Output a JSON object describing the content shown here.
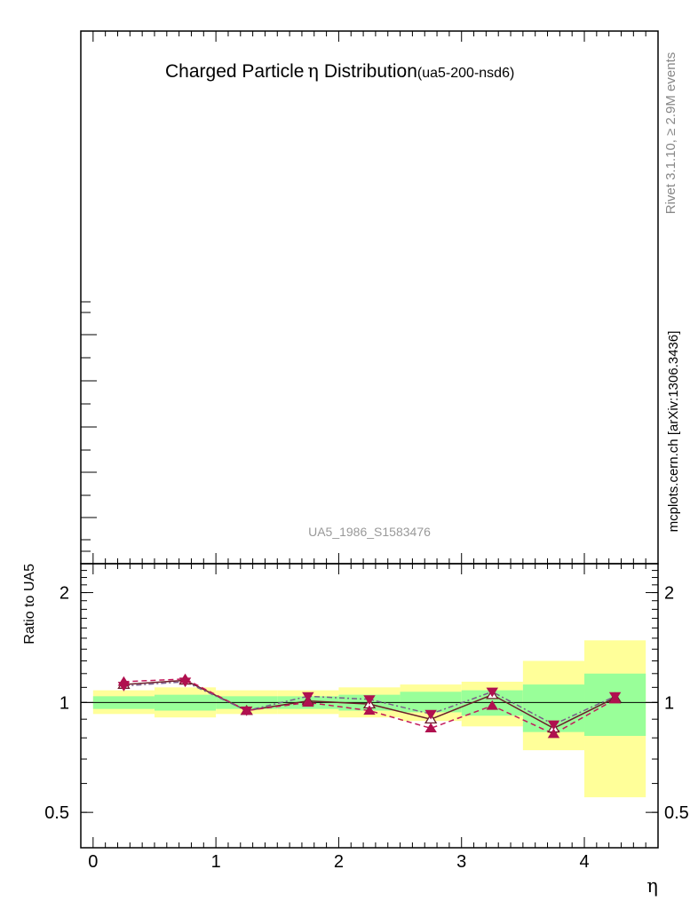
{
  "title": {
    "main": "Charged Particle",
    "symbol": "η",
    "tail": " Distribution",
    "tag": "(ua5-200-nsd6)"
  },
  "side_labels": {
    "rivet": "Rivet 3.1.10, ≥ 2.9M events",
    "mcplots": "mcplots.cern.ch [arXiv:1306.3436]"
  },
  "watermark": "UA5_1986_S1583476",
  "colors": {
    "band_outer": "#ffff99",
    "band_inner": "#99ff99",
    "mc_solid": "#6b1d2a",
    "mc_dashed": "#c2185b",
    "mc_dashdot": "#7a5c8a",
    "marker": "#b0104f",
    "watermark": "#999999",
    "side_text": "#888888"
  },
  "chart_data": {
    "type": "line",
    "title": "Charged Particle η Distribution (ua5-200-nsd6)",
    "xlabel": "η",
    "ylabel": "Ratio to UA5",
    "xlim": [
      -0.1,
      4.6
    ],
    "ylim": [
      0.4,
      2.4
    ],
    "yscale": "log",
    "x_ticks": [
      "0",
      "1",
      "2",
      "3",
      "4"
    ],
    "y_ticks": [
      "0.5",
      "1",
      "2"
    ],
    "reference_line": 1,
    "x_bins": [
      [
        0.0,
        0.5
      ],
      [
        0.5,
        1.0
      ],
      [
        1.0,
        1.5
      ],
      [
        1.5,
        2.0
      ],
      [
        2.0,
        2.5
      ],
      [
        2.5,
        3.0
      ],
      [
        3.0,
        3.5
      ],
      [
        3.5,
        4.0
      ],
      [
        4.0,
        4.5
      ]
    ],
    "x": [
      0.25,
      0.75,
      1.25,
      1.75,
      2.25,
      2.75,
      3.25,
      3.75,
      4.25
    ],
    "uncertainty_bands": {
      "outer": [
        [
          0.93,
          1.08
        ],
        [
          0.91,
          1.1
        ],
        [
          0.93,
          1.08
        ],
        [
          0.93,
          1.08
        ],
        [
          0.91,
          1.1
        ],
        [
          0.89,
          1.12
        ],
        [
          0.86,
          1.14
        ],
        [
          0.74,
          1.3
        ],
        [
          0.55,
          1.48
        ]
      ],
      "inner": [
        [
          0.96,
          1.04
        ],
        [
          0.95,
          1.05
        ],
        [
          0.96,
          1.04
        ],
        [
          0.96,
          1.04
        ],
        [
          0.95,
          1.05
        ],
        [
          0.94,
          1.07
        ],
        [
          0.92,
          1.08
        ],
        [
          0.83,
          1.12
        ],
        [
          0.81,
          1.2
        ]
      ]
    },
    "series": [
      {
        "values": [
          1.12,
          1.15,
          0.95,
          1.01,
          0.99,
          0.9,
          1.05,
          0.85,
          1.03
        ]
      },
      {
        "values": [
          1.14,
          1.16,
          0.95,
          1.0,
          0.95,
          0.85,
          0.98,
          0.82,
          1.02
        ]
      },
      {
        "values": [
          1.11,
          1.14,
          0.95,
          1.04,
          1.02,
          0.93,
          1.07,
          0.87,
          1.04
        ]
      }
    ]
  }
}
